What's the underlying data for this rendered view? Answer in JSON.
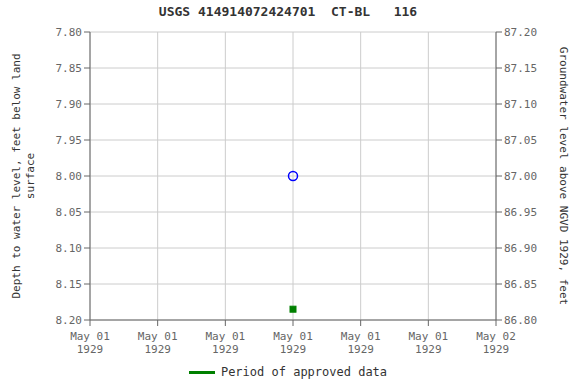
{
  "chart_data": {
    "type": "scatter",
    "title": "USGS 414914072424701  CT-BL   116",
    "ylabel": "Depth to water level, feet below land\nsurface",
    "y2label": "Groundwater level above NGVD 1929, feet",
    "categories": [
      "May 01\n1929",
      "May 01\n1929",
      "May 01\n1929",
      "May 01\n1929",
      "May 01\n1929",
      "May 01\n1929",
      "May 02\n1929"
    ],
    "series": [
      {
        "color": "#0000ff",
        "marker": "open_circle",
        "values": [
          null,
          null,
          null,
          8.0,
          null,
          null,
          null
        ]
      },
      {
        "name": "Period of approved data",
        "color": "#008000",
        "marker": "square",
        "values": [
          null,
          null,
          null,
          8.185,
          null,
          null,
          null
        ]
      }
    ],
    "ylim": [
      8.2,
      7.8
    ],
    "yticks": [
      {
        "value": 7.8,
        "label": "7.80"
      },
      {
        "value": 7.85,
        "label": "7.85"
      },
      {
        "value": 7.9,
        "label": "7.90"
      },
      {
        "value": 7.95,
        "label": "7.95"
      },
      {
        "value": 8.0,
        "label": "8.00"
      },
      {
        "value": 8.05,
        "label": "8.05"
      },
      {
        "value": 8.1,
        "label": "8.10"
      },
      {
        "value": 8.15,
        "label": "8.15"
      },
      {
        "value": 8.2,
        "label": "8.20"
      }
    ],
    "y2lim": [
      86.8,
      87.2
    ],
    "y2ticks": [
      {
        "value": 86.8,
        "label": "86.80"
      },
      {
        "value": 86.85,
        "label": "86.85"
      },
      {
        "value": 86.9,
        "label": "86.90"
      },
      {
        "value": 86.95,
        "label": "86.95"
      },
      {
        "value": 87.0,
        "label": "87.00"
      },
      {
        "value": 87.05,
        "label": "87.05"
      },
      {
        "value": 87.1,
        "label": "87.10"
      },
      {
        "value": 87.15,
        "label": "87.15"
      },
      {
        "value": 87.2,
        "label": "87.20"
      }
    ],
    "grid": true,
    "legend": "bottom"
  }
}
